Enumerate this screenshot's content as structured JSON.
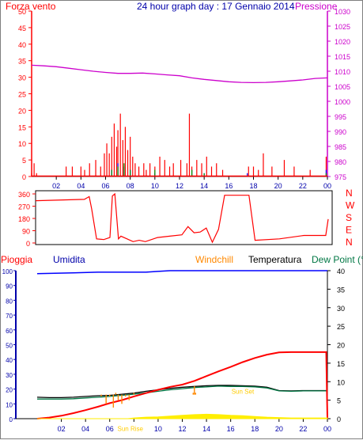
{
  "title": "24 hour graph day : 17 Gennaio 2014",
  "x_tick_labels": [
    "02",
    "04",
    "06",
    "08",
    "10",
    "12",
    "14",
    "16",
    "18",
    "20",
    "22",
    "00"
  ],
  "colors": {
    "red": "#ff0000",
    "darkred": "#d00000",
    "magenta": "#cc00cc",
    "blue": "#0000ff",
    "navy": "#0000aa",
    "green": "#009900",
    "orange": "#ff8800",
    "yellow": "#ffee00",
    "tealgreen": "#007744",
    "black": "#000000",
    "darkblue": "#000099"
  },
  "chart_data": [
    {
      "type": "line",
      "name": "wind-pressure",
      "left_axis_label": "Forza vento",
      "right_axis_label": "Pressione",
      "left_ticks": [
        0,
        5,
        10,
        15,
        20,
        25,
        30,
        35,
        40,
        45,
        50
      ],
      "right_ticks": [
        975,
        980,
        985,
        990,
        995,
        1000,
        1005,
        1010,
        1015,
        1020,
        1025,
        1030
      ],
      "left_ylim": [
        0,
        50
      ],
      "right_ylim": [
        975,
        1030
      ],
      "xlim": [
        0,
        24
      ],
      "series": [
        {
          "role": "pressure",
          "axis": "right",
          "color": "#cc00cc",
          "x": [
            0,
            1,
            2,
            3,
            4,
            5,
            6,
            7,
            8,
            9,
            10,
            11,
            12,
            13,
            14,
            15,
            16,
            17,
            18,
            19,
            20,
            21,
            22,
            23,
            24
          ],
          "y": [
            1012,
            1011.8,
            1011.5,
            1011,
            1010.5,
            1010,
            1009.6,
            1009.3,
            1009.3,
            1009.4,
            1009.1,
            1008.8,
            1008.5,
            1007.8,
            1007.3,
            1006.9,
            1006.5,
            1006.3,
            1006.2,
            1006.3,
            1006.5,
            1006.8,
            1007.1,
            1007.6,
            1007.8
          ]
        },
        {
          "role": "gust",
          "axis": "left",
          "color": "#ff0000",
          "x": [
            0,
            0.2,
            0.4,
            2.8,
            3.3,
            4.0,
            4.3,
            4.7,
            5.2,
            5.6,
            5.9,
            6.1,
            6.3,
            6.5,
            6.7,
            6.9,
            7.0,
            7.2,
            7.4,
            7.6,
            7.8,
            8.0,
            8.2,
            8.4,
            8.7,
            9.1,
            9.3,
            9.6,
            10.0,
            10.4,
            10.8,
            11.2,
            11.5,
            12.1,
            12.6,
            12.8,
            13.0,
            13.4,
            13.8,
            14.2,
            14.6,
            15.0,
            15.5,
            17.6,
            18.0,
            18.4,
            18.8,
            19.5,
            20.5,
            21.3,
            22.6,
            23.9
          ],
          "y": [
            1,
            4,
            1,
            3,
            3,
            3,
            2,
            4,
            5,
            3,
            7,
            10,
            7,
            12,
            16,
            9,
            14,
            19,
            11,
            15,
            8,
            12,
            6,
            4,
            3,
            4,
            2,
            4,
            3,
            6,
            5,
            3,
            4,
            5,
            4,
            19,
            3,
            5,
            4,
            6,
            3,
            4,
            2,
            3,
            3,
            2,
            7,
            3,
            5,
            3,
            2,
            6
          ]
        },
        {
          "role": "speed",
          "axis": "left",
          "color": "#0000ff",
          "x": [
            0,
            6.5,
            7.0,
            7.5,
            8.0,
            10.0,
            13.0,
            14.0,
            17.5,
            23.9
          ],
          "y": [
            0,
            2,
            4,
            3,
            2,
            1,
            2,
            1,
            1,
            2
          ]
        },
        {
          "role": "avg",
          "axis": "left",
          "color": "#009900",
          "x": [
            0,
            6.5,
            7.0,
            7.5,
            8.0,
            10.0,
            13.0,
            14.0,
            23.9
          ],
          "y": [
            0,
            2,
            3,
            4,
            2,
            2,
            2,
            1,
            1
          ]
        }
      ]
    },
    {
      "type": "line",
      "name": "wind-direction",
      "left_ticks": [
        0,
        90,
        180,
        270,
        360
      ],
      "right_labels": [
        "N",
        "W",
        "S",
        "E",
        "N"
      ],
      "ylim": [
        0,
        360
      ],
      "xlim": [
        0,
        24
      ],
      "series": [
        {
          "role": "direction",
          "color": "#ff0000",
          "x": [
            0,
            4.0,
            4.4,
            4.6,
            5.0,
            5.6,
            6.1,
            6.3,
            6.5,
            6.8,
            7.0,
            7.5,
            8.0,
            8.5,
            9.0,
            10.0,
            11.0,
            12.0,
            12.5,
            13.0,
            13.5,
            14.0,
            14.5,
            15.0,
            15.5,
            17.5,
            18.0,
            20.0,
            22.0,
            23.8,
            24.0
          ],
          "y": [
            310,
            320,
            340,
            250,
            30,
            25,
            40,
            345,
            360,
            30,
            50,
            30,
            10,
            20,
            10,
            40,
            50,
            60,
            120,
            75,
            80,
            110,
            5,
            100,
            350,
            350,
            20,
            30,
            55,
            55,
            175
          ]
        }
      ]
    },
    {
      "type": "line",
      "name": "temperature-humidity",
      "top_labels": [
        "Pioggia",
        "Umidita",
        "Windchill",
        "Temperatura",
        "Dew Point (°C"
      ],
      "left_ticks": [
        0,
        10,
        20,
        30,
        40,
        50,
        60,
        70,
        80,
        90,
        100
      ],
      "right_ticks": [
        0,
        5,
        10,
        15,
        20,
        25,
        30,
        35,
        40
      ],
      "left_ylim": [
        0,
        100
      ],
      "right_ylim": [
        0,
        40
      ],
      "xlim": [
        0,
        24
      ],
      "annotations": [
        {
          "text": "Sun Rise",
          "x": 7.7,
          "y_right": -3.3
        },
        {
          "text": "Sun Set",
          "x": 17.0,
          "y_right": 6.7
        }
      ],
      "series": [
        {
          "role": "humidity",
          "axis": "left",
          "color": "#0000ff",
          "x": [
            0,
            3,
            5,
            8,
            9,
            10,
            11,
            12,
            14,
            18,
            22,
            24
          ],
          "y": [
            98,
            98.5,
            99,
            99,
            99,
            99.5,
            100,
            100,
            100,
            100,
            100,
            100
          ]
        },
        {
          "role": "temperature",
          "axis": "right",
          "color": "#000000",
          "x": [
            0,
            1,
            2,
            3,
            4,
            5,
            6,
            7,
            8,
            9,
            10,
            11,
            12,
            13,
            14,
            15,
            16,
            17,
            18,
            19,
            20,
            21,
            22,
            23,
            24
          ],
          "y": [
            5.8,
            5.7,
            5.7,
            5.8,
            6.0,
            6.2,
            6.3,
            6.6,
            6.9,
            7.4,
            7.8,
            8.2,
            8.5,
            8.7,
            8.9,
            9.0,
            9.0,
            8.9,
            8.8,
            8.5,
            7.6,
            7.5,
            7.6,
            7.6,
            7.6
          ]
        },
        {
          "role": "dewpoint",
          "axis": "right",
          "color": "#007744",
          "x": [
            0,
            1,
            2,
            3,
            4,
            5,
            6,
            7,
            8,
            9,
            10,
            11,
            12,
            13,
            14,
            15,
            16,
            17,
            18,
            19,
            20,
            21,
            22,
            23,
            24
          ],
          "y": [
            5.3,
            5.3,
            5.3,
            5.4,
            5.6,
            5.8,
            6.0,
            6.3,
            6.6,
            7.0,
            7.4,
            7.8,
            8.1,
            8.4,
            8.6,
            8.8,
            8.7,
            8.7,
            8.6,
            8.3,
            7.5,
            7.4,
            7.5,
            7.5,
            7.5
          ]
        },
        {
          "role": "rain_total",
          "axis": "right",
          "color": "#ff0000",
          "x": [
            0,
            1,
            2,
            3,
            4,
            5,
            6,
            7,
            8,
            9,
            10,
            11,
            12,
            13,
            14,
            15,
            16,
            17,
            18,
            19,
            20,
            21,
            22,
            23,
            23.9,
            24
          ],
          "y": [
            0,
            0.3,
            0.8,
            1.5,
            2.3,
            3.2,
            4.2,
            5.0,
            6.0,
            6.9,
            7.8,
            8.6,
            9.2,
            10.2,
            11.5,
            12.8,
            14.0,
            15.3,
            16.4,
            17.3,
            17.9,
            18.0,
            18.0,
            18.0,
            18.0,
            0
          ]
        },
        {
          "role": "windchill",
          "axis": "right",
          "color": "#ff8800",
          "x": [
            5.3,
            5.7,
            6.0,
            6.3,
            6.5,
            6.7,
            7.0,
            7.3,
            7.6,
            8.0,
            12.9,
            13.0,
            13.1
          ],
          "y": [
            6,
            4,
            6,
            3,
            7,
            5,
            4,
            6,
            5,
            7,
            7,
            8.8,
            7
          ],
          "style": "spikes"
        },
        {
          "role": "solar",
          "axis": "right",
          "color": "#ffee00",
          "x": [
            0,
            7.5,
            8,
            9,
            10,
            11,
            12,
            13,
            14,
            15,
            16,
            17,
            18,
            19,
            20,
            21,
            22,
            23,
            24
          ],
          "y": [
            0,
            0,
            0.2,
            0.4,
            0.5,
            0.7,
            0.9,
            1.1,
            1.2,
            1.1,
            0.9,
            0.8,
            0.6,
            0.4,
            0.3,
            0.2,
            0.2,
            0.2,
            0.2
          ]
        }
      ]
    }
  ]
}
